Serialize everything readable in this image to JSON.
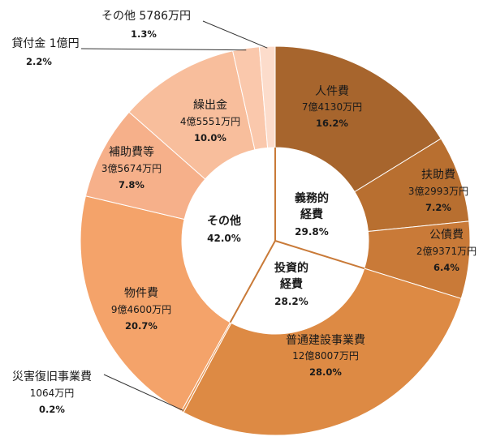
{
  "chart_data": {
    "type": "pie",
    "style": "nested-donut",
    "outer": [
      {
        "name": "人件費",
        "amount": "7億4130万円",
        "percent": 16.2,
        "color": "#A7652D"
      },
      {
        "name": "扶助費",
        "amount": "3億2993万円",
        "percent": 7.2,
        "color": "#B86F30"
      },
      {
        "name": "公債費",
        "amount": "2億9371万円",
        "percent": 6.4,
        "color": "#C97A38"
      },
      {
        "name": "普通建設事業費",
        "amount": "12億8007万円",
        "percent": 28.0,
        "color": "#DD8A44"
      },
      {
        "name": "災害復旧事業費",
        "amount": "1064万円",
        "percent": 0.2,
        "color": "#E89452"
      },
      {
        "name": "物件費",
        "amount": "9億4600万円",
        "percent": 20.7,
        "color": "#F4A36A"
      },
      {
        "name": "補助費等",
        "amount": "3億5674万円",
        "percent": 7.8,
        "color": "#F6B08A"
      },
      {
        "name": "繰出金",
        "amount": "4億5551万円",
        "percent": 10.0,
        "color": "#F8BE9C"
      },
      {
        "name": "貸付金",
        "amount": "1億円",
        "percent": 2.2,
        "color": "#FAC8AC"
      },
      {
        "name": "その他",
        "amount": "5786万円",
        "percent": 1.3,
        "color": "#FCDCCB"
      }
    ],
    "inner": [
      {
        "name": "義務的経費",
        "percent": 29.8
      },
      {
        "name": "投資的経費",
        "percent": 28.2
      },
      {
        "name": "その他",
        "percent": 42.0
      }
    ]
  },
  "labels": {
    "outer": [
      {
        "name": "人件費",
        "amount": "7億4130万円",
        "pct": "16.2%"
      },
      {
        "name": "扶助費",
        "amount": "3億2993万円",
        "pct": "7.2%"
      },
      {
        "name": "公債費",
        "amount": "2億9371万円",
        "pct": "6.4%"
      },
      {
        "name": "普通建設事業費",
        "amount": "12億8007万円",
        "pct": "28.0%"
      },
      {
        "name": "災害復旧事業費",
        "amount": "1064万円",
        "pct": "0.2%"
      },
      {
        "name": "物件費",
        "amount": "9億4600万円",
        "pct": "20.7%"
      },
      {
        "name": "補助費等",
        "amount": "3億5674万円",
        "pct": "7.8%"
      },
      {
        "name": "繰出金",
        "amount": "4億5551万円",
        "pct": "10.0%"
      },
      {
        "name": "貸付金 1億円",
        "amount": "",
        "pct": "2.2%"
      },
      {
        "name": "その他 5786万円",
        "amount": "",
        "pct": "1.3%"
      }
    ],
    "inner": [
      {
        "line1": "義務的",
        "line2": "経費",
        "pct": "29.8%"
      },
      {
        "line1": "投資的",
        "line2": "経費",
        "pct": "28.2%"
      },
      {
        "line1": "その他",
        "line2": "",
        "pct": "42.0%"
      }
    ]
  }
}
